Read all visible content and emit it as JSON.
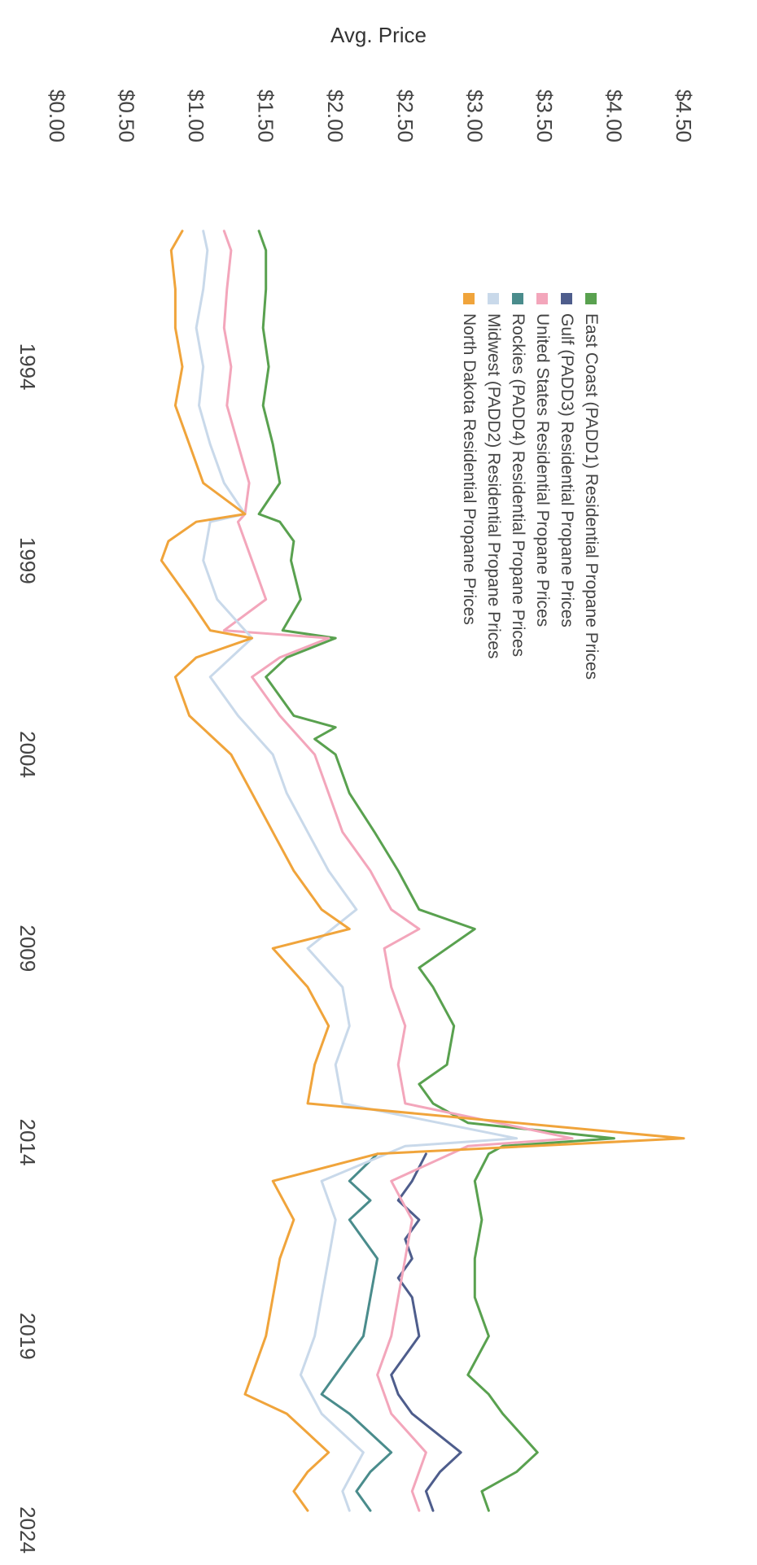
{
  "chart_data": {
    "type": "line",
    "title": "",
    "ylabel": "Avg. Price",
    "xlabel": "",
    "x_ticks": [
      "1994",
      "1999",
      "2004",
      "2009",
      "2014",
      "2019",
      "2024"
    ],
    "y_ticks": [
      "$0.00",
      "$0.50",
      "$1.00",
      "$1.50",
      "$2.00",
      "$2.50",
      "$3.00",
      "$3.50",
      "$4.00",
      "$4.50"
    ],
    "xlim": [
      1990,
      2024
    ],
    "ylim": [
      0,
      4.5
    ],
    "orientation": "rotated 90 degrees clockwise",
    "grid": false,
    "legend_position": "upper-right (rotated)",
    "series": [
      {
        "name": "East Coast (PADD1) Residential Propane Prices",
        "color": "#59a14f",
        "x": [
          1990.5,
          1991.0,
          1992.0,
          1993.0,
          1994.0,
          1995.0,
          1996.0,
          1997.0,
          1997.8,
          1998.0,
          1998.5,
          1999.0,
          2000.0,
          2000.8,
          2001.0,
          2001.5,
          2002.0,
          2003.0,
          2003.3,
          2003.6,
          2004.0,
          2005.0,
          2006.0,
          2007.0,
          2008.0,
          2008.5,
          2009.0,
          2009.5,
          2010.0,
          2011.0,
          2012.0,
          2012.5,
          2013.0,
          2013.5,
          2013.9,
          2014.1,
          2014.3,
          2015.0,
          2016.0,
          2017.0,
          2018.0,
          2019.0,
          2020.0,
          2020.5,
          2021.0,
          2022.0,
          2022.5,
          2023.0,
          2023.5
        ],
        "y": [
          1.45,
          1.5,
          1.5,
          1.48,
          1.52,
          1.48,
          1.55,
          1.6,
          1.45,
          1.6,
          1.7,
          1.68,
          1.75,
          1.62,
          2.0,
          1.65,
          1.5,
          1.7,
          2.0,
          1.85,
          2.0,
          2.1,
          2.28,
          2.45,
          2.6,
          3.0,
          2.8,
          2.6,
          2.7,
          2.85,
          2.8,
          2.6,
          2.7,
          2.95,
          4.0,
          3.2,
          3.1,
          3.0,
          3.05,
          3.0,
          3.0,
          3.1,
          2.95,
          3.1,
          3.2,
          3.45,
          3.3,
          3.05,
          3.1
        ]
      },
      {
        "name": "Gulf (PADD3) Residential Propane Prices",
        "color": "#4e5d8c",
        "x": [
          2014.3,
          2015.0,
          2015.5,
          2016.0,
          2016.5,
          2017.0,
          2017.5,
          2018.0,
          2019.0,
          2020.0,
          2020.5,
          2021.0,
          2022.0,
          2022.5,
          2023.0,
          2023.5
        ],
        "y": [
          2.65,
          2.55,
          2.45,
          2.6,
          2.5,
          2.55,
          2.45,
          2.55,
          2.6,
          2.4,
          2.45,
          2.55,
          2.9,
          2.75,
          2.65,
          2.7
        ]
      },
      {
        "name": "United States Residential Propane Prices",
        "color": "#f3a6bb",
        "x": [
          1990.5,
          1991.0,
          1992.0,
          1993.0,
          1994.0,
          1995.0,
          1996.0,
          1997.0,
          1997.8,
          1998.0,
          1998.5,
          1999.0,
          2000.0,
          2000.8,
          2001.0,
          2001.5,
          2002.0,
          2003.0,
          2004.0,
          2005.0,
          2006.0,
          2007.0,
          2008.0,
          2008.5,
          2009.0,
          2010.0,
          2011.0,
          2012.0,
          2013.0,
          2013.9,
          2014.1,
          2015.0,
          2016.0,
          2017.0,
          2018.0,
          2019.0,
          2020.0,
          2021.0,
          2022.0,
          2023.0,
          2023.5
        ],
        "y": [
          1.2,
          1.25,
          1.22,
          1.2,
          1.25,
          1.22,
          1.3,
          1.38,
          1.35,
          1.3,
          1.35,
          1.4,
          1.5,
          1.2,
          1.95,
          1.6,
          1.4,
          1.6,
          1.85,
          1.95,
          2.05,
          2.25,
          2.4,
          2.6,
          2.35,
          2.4,
          2.5,
          2.45,
          2.5,
          3.7,
          2.95,
          2.4,
          2.55,
          2.5,
          2.45,
          2.4,
          2.3,
          2.4,
          2.65,
          2.55,
          2.6
        ]
      },
      {
        "name": "Rockies (PADD4) Residential Propane Prices",
        "color": "#4a8c8c",
        "x": [
          2014.3,
          2015.0,
          2015.5,
          2016.0,
          2017.0,
          2018.0,
          2019.0,
          2020.0,
          2020.5,
          2021.0,
          2022.0,
          2022.5,
          2023.0,
          2023.5
        ],
        "y": [
          2.3,
          2.1,
          2.25,
          2.1,
          2.3,
          2.25,
          2.2,
          2.0,
          1.9,
          2.1,
          2.4,
          2.25,
          2.15,
          2.25
        ]
      },
      {
        "name": "Midwest (PADD2) Residential Propane Prices",
        "color": "#c9d9ea",
        "x": [
          1990.5,
          1991.0,
          1992.0,
          1993.0,
          1994.0,
          1995.0,
          1996.0,
          1997.0,
          1997.8,
          1998.0,
          1999.0,
          2000.0,
          2001.0,
          2002.0,
          2003.0,
          2004.0,
          2005.0,
          2006.0,
          2007.0,
          2008.0,
          2009.0,
          2010.0,
          2011.0,
          2012.0,
          2013.0,
          2013.9,
          2014.1,
          2015.0,
          2016.0,
          2017.0,
          2018.0,
          2019.0,
          2020.0,
          2021.0,
          2022.0,
          2023.0,
          2023.5
        ],
        "y": [
          1.05,
          1.08,
          1.05,
          1.0,
          1.05,
          1.02,
          1.1,
          1.2,
          1.35,
          1.1,
          1.05,
          1.15,
          1.4,
          1.1,
          1.3,
          1.55,
          1.65,
          1.8,
          1.95,
          2.15,
          1.8,
          2.05,
          2.1,
          2.0,
          2.05,
          3.3,
          2.5,
          1.9,
          2.0,
          1.95,
          1.9,
          1.85,
          1.75,
          1.9,
          2.2,
          2.05,
          2.1
        ]
      },
      {
        "name": "North Dakota Residential Propane Prices",
        "color": "#f0a43b",
        "x": [
          1990.5,
          1991.0,
          1992.0,
          1993.0,
          1994.0,
          1995.0,
          1996.0,
          1997.0,
          1997.8,
          1998.0,
          1998.5,
          1999.0,
          2000.0,
          2000.8,
          2001.0,
          2001.5,
          2002.0,
          2003.0,
          2004.0,
          2005.0,
          2006.0,
          2007.0,
          2008.0,
          2008.5,
          2009.0,
          2010.0,
          2011.0,
          2012.0,
          2013.0,
          2013.9,
          2014.3,
          2015.0,
          2016.0,
          2017.0,
          2018.0,
          2019.0,
          2020.0,
          2020.5,
          2021.0,
          2022.0,
          2022.5,
          2023.0,
          2023.5
        ],
        "y": [
          0.9,
          0.82,
          0.85,
          0.85,
          0.9,
          0.85,
          0.95,
          1.05,
          1.35,
          1.0,
          0.8,
          0.75,
          0.95,
          1.1,
          1.4,
          1.0,
          0.85,
          0.95,
          1.25,
          1.4,
          1.55,
          1.7,
          1.9,
          2.1,
          1.55,
          1.8,
          1.95,
          1.85,
          1.8,
          4.5,
          2.3,
          1.55,
          1.7,
          1.6,
          1.55,
          1.5,
          1.4,
          1.35,
          1.65,
          1.95,
          1.8,
          1.7,
          1.8
        ]
      }
    ]
  }
}
